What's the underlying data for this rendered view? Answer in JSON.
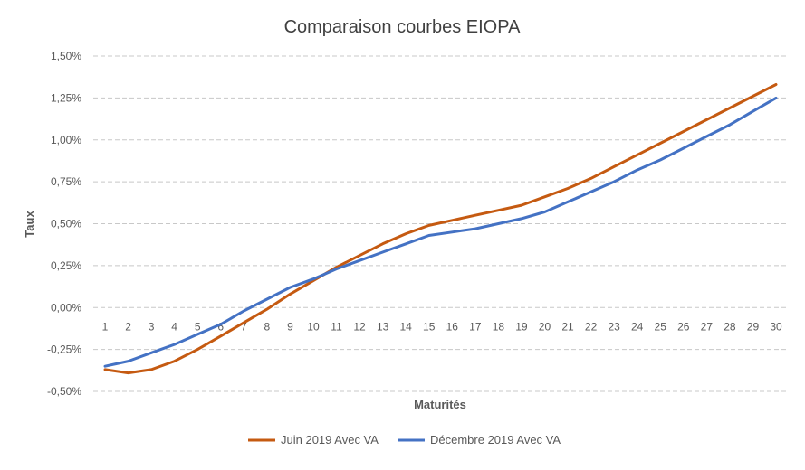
{
  "chart_data": {
    "type": "line",
    "title": "Comparaison courbes EIOPA",
    "xlabel": "Maturités",
    "ylabel": "Taux",
    "ylim": [
      -0.5,
      1.5
    ],
    "yticks": [
      "1,50%",
      "1,25%",
      "1,00%",
      "0,75%",
      "0,50%",
      "0,25%",
      "0,00%",
      "-0,25%",
      "-0,50%"
    ],
    "ytick_values": [
      1.5,
      1.25,
      1.0,
      0.75,
      0.5,
      0.25,
      0.0,
      -0.25,
      -0.5
    ],
    "categories": [
      "1",
      "2",
      "3",
      "4",
      "5",
      "6",
      "7",
      "8",
      "9",
      "10",
      "11",
      "12",
      "13",
      "14",
      "15",
      "16",
      "17",
      "18",
      "19",
      "20",
      "21",
      "22",
      "23",
      "24",
      "25",
      "26",
      "27",
      "28",
      "29",
      "30"
    ],
    "grid": "horizontal-dashed",
    "legend_position": "bottom",
    "series": [
      {
        "name": "Juin 2019 Avec VA",
        "color": "#C55A11",
        "values": [
          -0.37,
          -0.39,
          -0.37,
          -0.32,
          -0.25,
          -0.17,
          -0.09,
          -0.01,
          0.08,
          0.16,
          0.24,
          0.31,
          0.38,
          0.44,
          0.49,
          0.52,
          0.55,
          0.58,
          0.61,
          0.66,
          0.71,
          0.77,
          0.84,
          0.91,
          0.98,
          1.05,
          1.12,
          1.19,
          1.26,
          1.33
        ]
      },
      {
        "name": "Décembre 2019 Avec VA",
        "color": "#4472C4",
        "values": [
          -0.35,
          -0.32,
          -0.27,
          -0.22,
          -0.16,
          -0.1,
          -0.02,
          0.05,
          0.12,
          0.17,
          0.23,
          0.28,
          0.33,
          0.38,
          0.43,
          0.45,
          0.47,
          0.5,
          0.53,
          0.57,
          0.63,
          0.69,
          0.75,
          0.82,
          0.88,
          0.95,
          1.02,
          1.09,
          1.17,
          1.25
        ]
      }
    ]
  }
}
